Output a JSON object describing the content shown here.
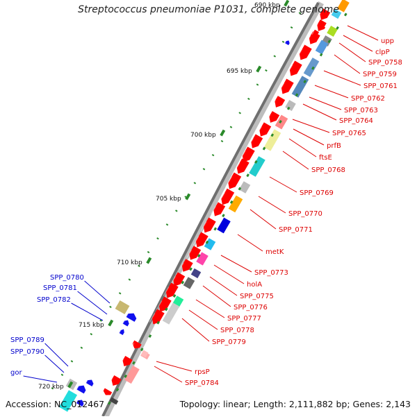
{
  "title": "Streptococcus pneumoniae P1031, complete genome",
  "footer": {
    "accession": "Accession: NC_012467",
    "summary": "Topology: linear; Length: 2,111,882 bp; Genes: 2,143"
  },
  "colors": {
    "forward_gene": "#ff0000",
    "reverse_gene": "#1010ee",
    "label_right": "#dd0000",
    "label_left": "#0000cc",
    "backbone": "#777777",
    "tick": "#2a8a2a"
  },
  "scale_labels": [
    "690 kbp",
    "695 kbp",
    "700 kbp",
    "705 kbp",
    "710 kbp",
    "715 kbp",
    "720 kbp"
  ],
  "right_labels": [
    "upp",
    "clpP",
    "SPP_0758",
    "SPP_0759",
    "SPP_0761",
    "SPP_0762",
    "SPP_0763",
    "SPP_0764",
    "SPP_0765",
    "prfB",
    "ftsE",
    "SPP_0768",
    "SPP_0769",
    "SPP_0770",
    "SPP_0771",
    "metK",
    "SPP_0773",
    "holA",
    "SPP_0775",
    "SPP_0776",
    "SPP_0777",
    "SPP_0778",
    "SPP_0779",
    "rpsP",
    "SPP_0784"
  ],
  "left_labels": [
    "SPP_0780",
    "SPP_0781",
    "SPP_0782",
    "SPP_0789",
    "SPP_0790",
    "gor"
  ]
}
